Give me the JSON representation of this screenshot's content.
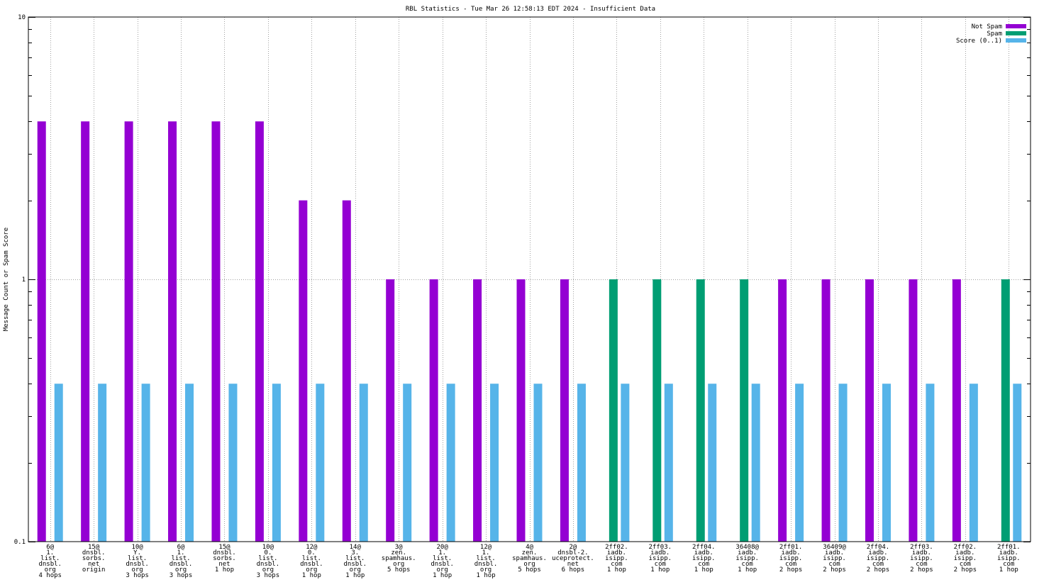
{
  "chart_data": {
    "type": "bar",
    "title": "RBL Statistics - Tue Mar 26 12:58:13 EDT 2024 - Insufficient Data",
    "xlabel": "",
    "ylabel": "Message Count or Spam Score",
    "y_scale": "log",
    "ylim": [
      0.1,
      10
    ],
    "y_ticks": [
      "10",
      "1",
      "0.1"
    ],
    "grid": true,
    "legend_position": "top-right",
    "categories": [
      [
        "6@",
        "1.",
        "list.",
        "dnsbl.",
        "org",
        "4 hops"
      ],
      [
        "15@",
        "dnsbl.",
        "sorbs.",
        "net",
        "origin"
      ],
      [
        "10@",
        "Y.",
        "list.",
        "dnsbl.",
        "org",
        "3 hops"
      ],
      [
        "6@",
        "1.",
        "list.",
        "dnsbl.",
        "org",
        "3 hops"
      ],
      [
        "15@",
        "dnsbl.",
        "sorbs.",
        "net",
        "1 hop"
      ],
      [
        "10@",
        "0.",
        "list.",
        "dnsbl.",
        "org",
        "3 hops"
      ],
      [
        "12@",
        "0.",
        "list.",
        "dnsbl.",
        "org",
        "1 hop"
      ],
      [
        "14@",
        "3.",
        "list.",
        "dnsbl.",
        "org",
        "1 hop"
      ],
      [
        "3@",
        "zen.",
        "spamhaus.",
        "org",
        "5 hops"
      ],
      [
        "20@",
        "1.",
        "list.",
        "dnsbl.",
        "org",
        "1 hop"
      ],
      [
        "12@",
        "1.",
        "list.",
        "dnsbl.",
        "org",
        "1 hop"
      ],
      [
        "4@",
        "zen.",
        "spamhaus.",
        "org",
        "5 hops"
      ],
      [
        "2@",
        "dnsbl-2.",
        "uceprotect.",
        "net",
        "6 hops"
      ],
      [
        "2ff02.",
        "iadb.",
        "isipp.",
        "com",
        "1 hop"
      ],
      [
        "2ff03.",
        "iadb.",
        "isipp.",
        "com",
        "1 hop"
      ],
      [
        "2ff04.",
        "iadb.",
        "isipp.",
        "com",
        "1 hop"
      ],
      [
        "36408@",
        "iadb.",
        "isipp.",
        "com",
        "1 hop"
      ],
      [
        "2ff01.",
        "iadb.",
        "isipp.",
        "com",
        "2 hops"
      ],
      [
        "36409@",
        "iadb.",
        "isipp.",
        "com",
        "2 hops"
      ],
      [
        "2ff04.",
        "iadb.",
        "isipp.",
        "com",
        "2 hops"
      ],
      [
        "2ff03.",
        "iadb.",
        "isipp.",
        "com",
        "2 hops"
      ],
      [
        "2ff02.",
        "iadb.",
        "isipp.",
        "com",
        "2 hops"
      ],
      [
        "2ff01.",
        "iadb.",
        "isipp.",
        "com",
        "1 hop"
      ]
    ],
    "series": [
      {
        "name": "Not Spam",
        "color": "#9400d3",
        "values": [
          4,
          4,
          4,
          4,
          4,
          4,
          2,
          2,
          1,
          1,
          1,
          1,
          1,
          null,
          null,
          null,
          null,
          1,
          1,
          1,
          1,
          1,
          null
        ]
      },
      {
        "name": "Spam",
        "color": "#009e73",
        "values": [
          null,
          null,
          null,
          null,
          null,
          null,
          null,
          null,
          null,
          null,
          null,
          null,
          null,
          1,
          1,
          1,
          1,
          null,
          null,
          null,
          null,
          null,
          1
        ]
      },
      {
        "name": "Score (0..1)",
        "color": "#56b4e9",
        "values": [
          0.4,
          0.4,
          0.4,
          0.4,
          0.4,
          0.4,
          0.4,
          0.4,
          0.4,
          0.4,
          0.4,
          0.4,
          0.4,
          0.4,
          0.4,
          0.4,
          0.4,
          0.4,
          0.4,
          0.4,
          0.4,
          0.4,
          0.4
        ]
      }
    ]
  }
}
